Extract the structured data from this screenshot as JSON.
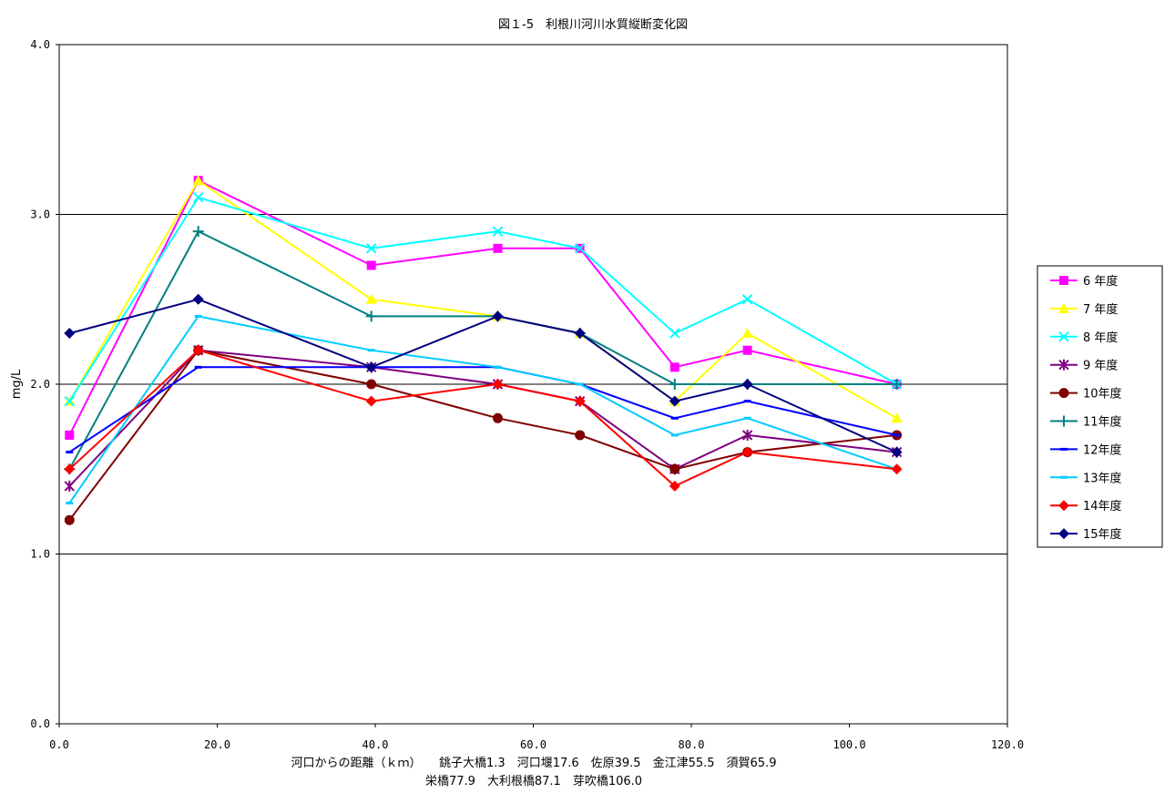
{
  "chart_data": {
    "type": "line",
    "title": "図１-5　利根川河川水質縦断変化図",
    "xlabel_line1": "河口からの距離（ｋｍ）　　銚子大橋1.3　河口堰17.6　佐原39.5　金江津55.5　須賀65.9",
    "xlabel_line2": "栄橋77.9　大利根橋87.1　芽吹橋106.0",
    "ylabel": "mg/L",
    "xlim": [
      0,
      120
    ],
    "ylim": [
      0,
      4
    ],
    "x_ticks": [
      "0.0",
      "20.0",
      "40.0",
      "60.0",
      "80.0",
      "100.0",
      "120.0"
    ],
    "y_ticks": [
      "0.0",
      "1.0",
      "2.0",
      "3.0",
      "4.0"
    ],
    "grid": "horizontal",
    "legend_position": "right",
    "x": [
      1.3,
      17.6,
      39.5,
      55.5,
      65.9,
      77.9,
      87.1,
      106.0
    ],
    "series": [
      {
        "name": "6 年度",
        "color": "#ff00ff",
        "marker": "square",
        "values": [
          1.7,
          3.2,
          2.7,
          2.8,
          2.8,
          2.1,
          2.2,
          2.0
        ]
      },
      {
        "name": "7 年度",
        "color": "#ffff00",
        "marker": "triangle",
        "values": [
          1.9,
          3.2,
          2.5,
          2.4,
          2.3,
          1.9,
          2.3,
          1.8
        ]
      },
      {
        "name": "8 年度",
        "color": "#00ffff",
        "marker": "x",
        "values": [
          1.9,
          3.1,
          2.8,
          2.9,
          2.8,
          2.3,
          2.5,
          2.0
        ]
      },
      {
        "name": "9 年度",
        "color": "#800080",
        "marker": "star",
        "values": [
          1.4,
          2.2,
          2.1,
          2.0,
          1.9,
          1.5,
          1.7,
          1.6
        ]
      },
      {
        "name": "10年度",
        "color": "#800000",
        "marker": "circle",
        "values": [
          1.2,
          2.2,
          2.0,
          1.8,
          1.7,
          1.5,
          1.6,
          1.7
        ]
      },
      {
        "name": "11年度",
        "color": "#008080",
        "marker": "plus",
        "values": [
          1.5,
          2.9,
          2.4,
          2.4,
          2.3,
          2.0,
          2.0,
          2.0
        ]
      },
      {
        "name": "12年度",
        "color": "#0000ff",
        "marker": "dash",
        "values": [
          1.6,
          2.1,
          2.1,
          2.1,
          2.0,
          1.8,
          1.9,
          1.7
        ]
      },
      {
        "name": "13年度",
        "color": "#00ccff",
        "marker": "dash",
        "values": [
          1.3,
          2.4,
          2.2,
          2.1,
          2.0,
          1.7,
          1.8,
          1.5
        ]
      },
      {
        "name": "14年度",
        "color": "#ff0000",
        "marker": "diamond",
        "values": [
          1.5,
          2.2,
          1.9,
          2.0,
          1.9,
          1.4,
          1.6,
          1.5
        ]
      },
      {
        "name": "15年度",
        "color": "#000080",
        "marker": "diamond",
        "values": [
          2.3,
          2.5,
          2.1,
          2.4,
          2.3,
          1.9,
          2.0,
          1.6
        ]
      }
    ]
  }
}
